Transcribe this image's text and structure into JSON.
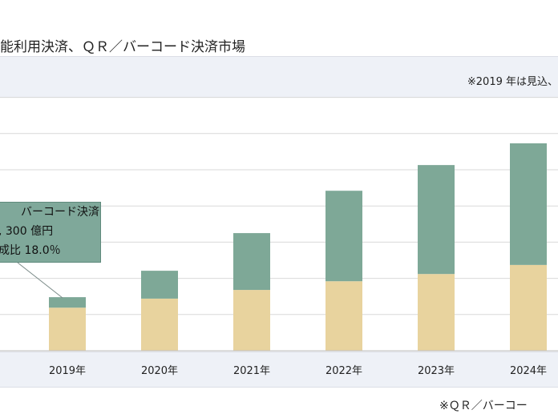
{
  "header": {
    "title": "能利用決済、ＱＲ／バーコード決済市場",
    "note_top": "※2019 年は見込、",
    "note_bottom": "※ＱＲ／バーコー"
  },
  "callout": {
    "line1": "バーコード決済",
    "line2": ", 300 億円",
    "line3": "成比 18.0％"
  },
  "colors": {
    "lower": "#e8d39e",
    "upper": "#7ea897",
    "grid": "#d9d9d9"
  },
  "chart_data": {
    "type": "bar",
    "stacked": true,
    "categories": [
      "2019年",
      "2020年",
      "2021年",
      "2022年",
      "2023年",
      "2024年"
    ],
    "series": [
      {
        "values": [
          1.19,
          1.44,
          1.68,
          1.92,
          2.12,
          2.37
        ],
        "color": "#e8d39e"
      },
      {
        "values": [
          0.29,
          0.77,
          1.57,
          2.5,
          3.01,
          3.36
        ],
        "color": "#7ea897"
      }
    ],
    "ylim": [
      0,
      7
    ],
    "grid": true,
    "y_ticks_visible": false,
    "annotation": "callout on 2019 upper segment"
  }
}
